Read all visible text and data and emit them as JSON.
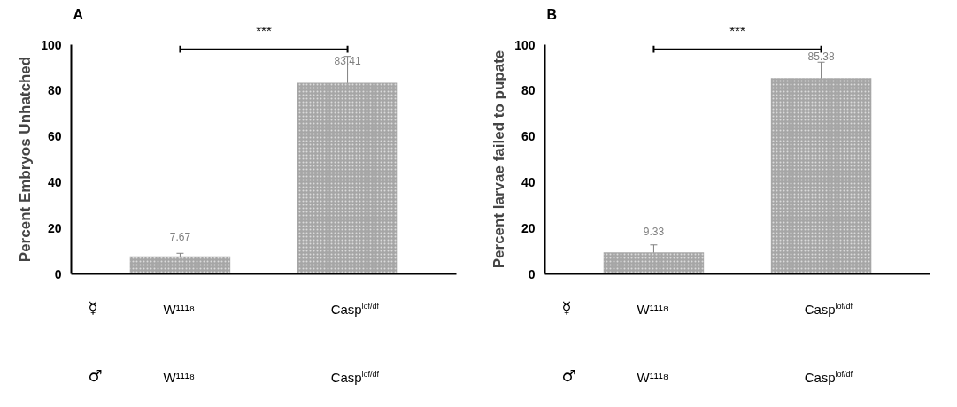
{
  "chart_data": [
    {
      "type": "bar",
      "title": "A",
      "ylabel": "Percent Embryos Unhatched",
      "categories": [
        "W¹¹¹⁸",
        "Casp$^{lof/df}$"
      ],
      "values": [
        7.67,
        83.41
      ],
      "errors": [
        1.3,
        11.5
      ],
      "color": "#a6a6a6",
      "data_labels": true,
      "ylim": [
        0,
        100
      ],
      "yticks": [
        0,
        20,
        40,
        60,
        80,
        100
      ],
      "grid": false,
      "annotations": [
        "***",
        "☿",
        "♂"
      ]
    },
    {
      "type": "bar",
      "title": "B",
      "ylabel": "Percent larvae failed to pupate",
      "categories": [
        "W¹¹¹⁸",
        "Casp$^{lof/df}$"
      ],
      "values": [
        9.33,
        85.38
      ],
      "errors": [
        3.3,
        7
      ],
      "color": "#a6a6a6",
      "data_labels": true,
      "ylim": [
        0,
        100
      ],
      "yticks": [
        0,
        20,
        40,
        60,
        80,
        100
      ],
      "grid": false,
      "annotations": [
        "***",
        "☿",
        "♂"
      ]
    }
  ]
}
